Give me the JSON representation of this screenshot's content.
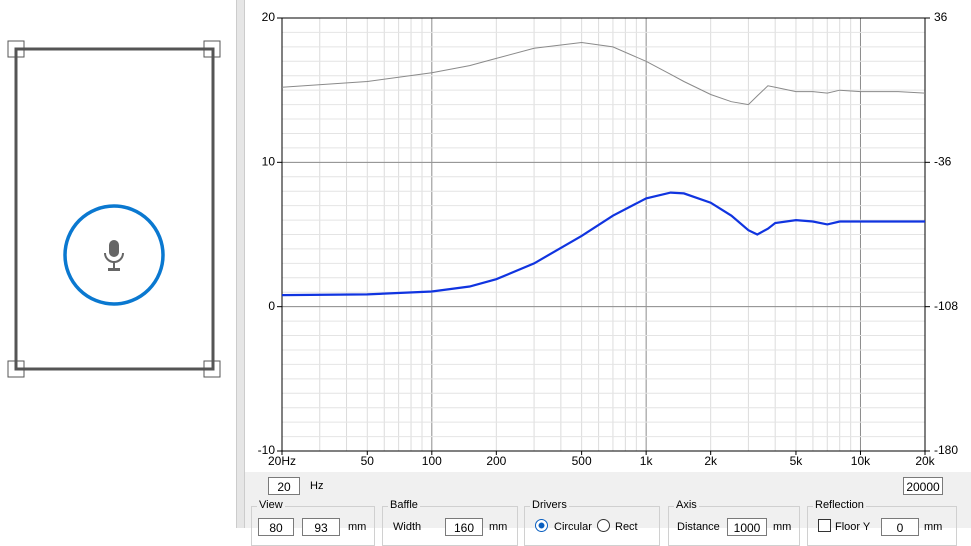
{
  "chart_data": {
    "type": "line",
    "x": [
      20,
      50,
      100,
      150,
      200,
      300,
      500,
      700,
      1000,
      1300,
      1500,
      2000,
      2500,
      3000,
      3300,
      3700,
      4000,
      5000,
      6000,
      7000,
      8000,
      10000,
      15000,
      20000
    ],
    "series": [
      {
        "color": "#8a8a8a",
        "values": [
          15.2,
          15.6,
          16.2,
          16.7,
          17.2,
          17.9,
          18.3,
          18.0,
          17.0,
          16.1,
          15.6,
          14.7,
          14.2,
          14.0,
          14.6,
          15.3,
          15.2,
          14.9,
          14.9,
          14.8,
          15.0,
          14.9,
          14.9,
          14.8
        ]
      },
      {
        "color": "#1034e0",
        "values": [
          0.8,
          0.85,
          1.05,
          1.4,
          1.9,
          3.0,
          4.9,
          6.3,
          7.5,
          7.9,
          7.85,
          7.2,
          6.3,
          5.3,
          5.0,
          5.4,
          5.8,
          6.0,
          5.9,
          5.7,
          5.9,
          5.9,
          5.9,
          5.9
        ]
      }
    ],
    "xlog": true,
    "xlim": [
      20,
      20000
    ],
    "xticks": [
      {
        "value": 20,
        "label": "20Hz"
      },
      50,
      100,
      200,
      500,
      {
        "value": 1000,
        "label": "1k"
      },
      {
        "value": 2000,
        "label": "2k"
      },
      {
        "value": 5000,
        "label": "5k"
      },
      {
        "value": 10000,
        "label": "10k"
      },
      {
        "value": 20000,
        "label": "20k"
      }
    ],
    "ylim": [
      -10,
      20
    ],
    "yticks": [
      20,
      10,
      0,
      -10
    ],
    "y2lim": [
      -180,
      36
    ],
    "y2ticks": [
      36,
      -36,
      -108,
      -180
    ],
    "grid": true
  },
  "controls": {
    "freq_min": "20",
    "freq_unit": "Hz",
    "freq_max": "20000",
    "view": {
      "title": "View",
      "x": "80",
      "y": "93",
      "unit": "mm"
    },
    "baffle": {
      "title": "Baffle",
      "label": "Width",
      "value": "160",
      "unit": "mm"
    },
    "drivers": {
      "title": "Drivers",
      "option1": "Circular",
      "option2": "Rect"
    },
    "axis": {
      "title": "Axis",
      "label": "Distance",
      "value": "1000",
      "unit": "mm"
    },
    "reflection": {
      "title": "Reflection",
      "label": "Floor Y",
      "value": "0",
      "unit": "mm"
    }
  }
}
